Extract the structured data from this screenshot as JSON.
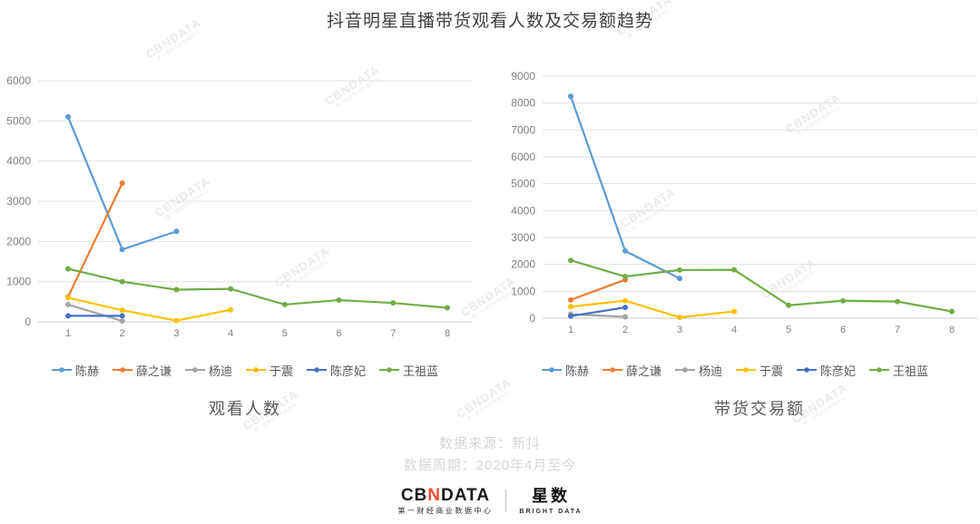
{
  "title": "抖音明星直播带货观看人数及交易额趋势",
  "watermark": {
    "text": "CBNDATA",
    "subtext": "第一财经商业数据中心"
  },
  "chart_data": [
    {
      "type": "line",
      "title": "观看人数",
      "x": [
        "1",
        "2",
        "3",
        "4",
        "5",
        "6",
        "7",
        "8"
      ],
      "ylim": [
        0,
        6000
      ],
      "ytick": 1000,
      "grid": true,
      "legend_position": "bottom",
      "series": [
        {
          "name": "陈赫",
          "color": "#5B9BD5",
          "values": [
            5100,
            1800,
            2250,
            null,
            null,
            null,
            null,
            null
          ]
        },
        {
          "name": "薛之谦",
          "color": "#ED7D31",
          "values": [
            620,
            3450,
            null,
            null,
            null,
            null,
            null,
            null
          ]
        },
        {
          "name": "杨迪",
          "color": "#A5A5A5",
          "values": [
            430,
            20,
            null,
            null,
            null,
            null,
            null,
            null
          ]
        },
        {
          "name": "于震",
          "color": "#FFC000",
          "values": [
            600,
            290,
            30,
            300,
            null,
            null,
            null,
            null
          ]
        },
        {
          "name": "陈彦妃",
          "color": "#4472C4",
          "values": [
            150,
            150,
            null,
            null,
            null,
            null,
            null,
            null
          ]
        },
        {
          "name": "王祖蓝",
          "color": "#70AD47",
          "values": [
            1320,
            1000,
            800,
            820,
            430,
            540,
            470,
            350
          ]
        }
      ]
    },
    {
      "type": "line",
      "title": "带货交易额",
      "x": [
        "1",
        "2",
        "3",
        "4",
        "5",
        "6",
        "7",
        "8"
      ],
      "ylim": [
        0,
        9000
      ],
      "ytick": 1000,
      "grid": true,
      "legend_position": "bottom",
      "series": [
        {
          "name": "陈赫",
          "color": "#5B9BD5",
          "values": [
            8250,
            2500,
            1480,
            null,
            null,
            null,
            null,
            null
          ]
        },
        {
          "name": "薛之谦",
          "color": "#ED7D31",
          "values": [
            680,
            1430,
            null,
            null,
            null,
            null,
            null,
            null
          ]
        },
        {
          "name": "杨迪",
          "color": "#A5A5A5",
          "values": [
            150,
            50,
            null,
            null,
            null,
            null,
            null,
            null
          ]
        },
        {
          "name": "于震",
          "color": "#FFC000",
          "values": [
            430,
            650,
            30,
            250,
            null,
            null,
            null,
            null
          ]
        },
        {
          "name": "陈彦妃",
          "color": "#4472C4",
          "values": [
            80,
            400,
            null,
            null,
            null,
            null,
            null,
            null
          ]
        },
        {
          "name": "王祖蓝",
          "color": "#70AD47",
          "values": [
            2150,
            1550,
            1790,
            1800,
            480,
            650,
            620,
            250
          ]
        }
      ]
    }
  ],
  "footer": {
    "source": "数据来源：新抖",
    "period": "数据周期：2020年4月至今"
  },
  "logos": {
    "cbndata": {
      "cb": "CB",
      "n": "N",
      "data": "DATA",
      "sub": "第一财经商业数据中心"
    },
    "star": {
      "name": "星数",
      "sub": "BRIGHT DATA"
    }
  }
}
